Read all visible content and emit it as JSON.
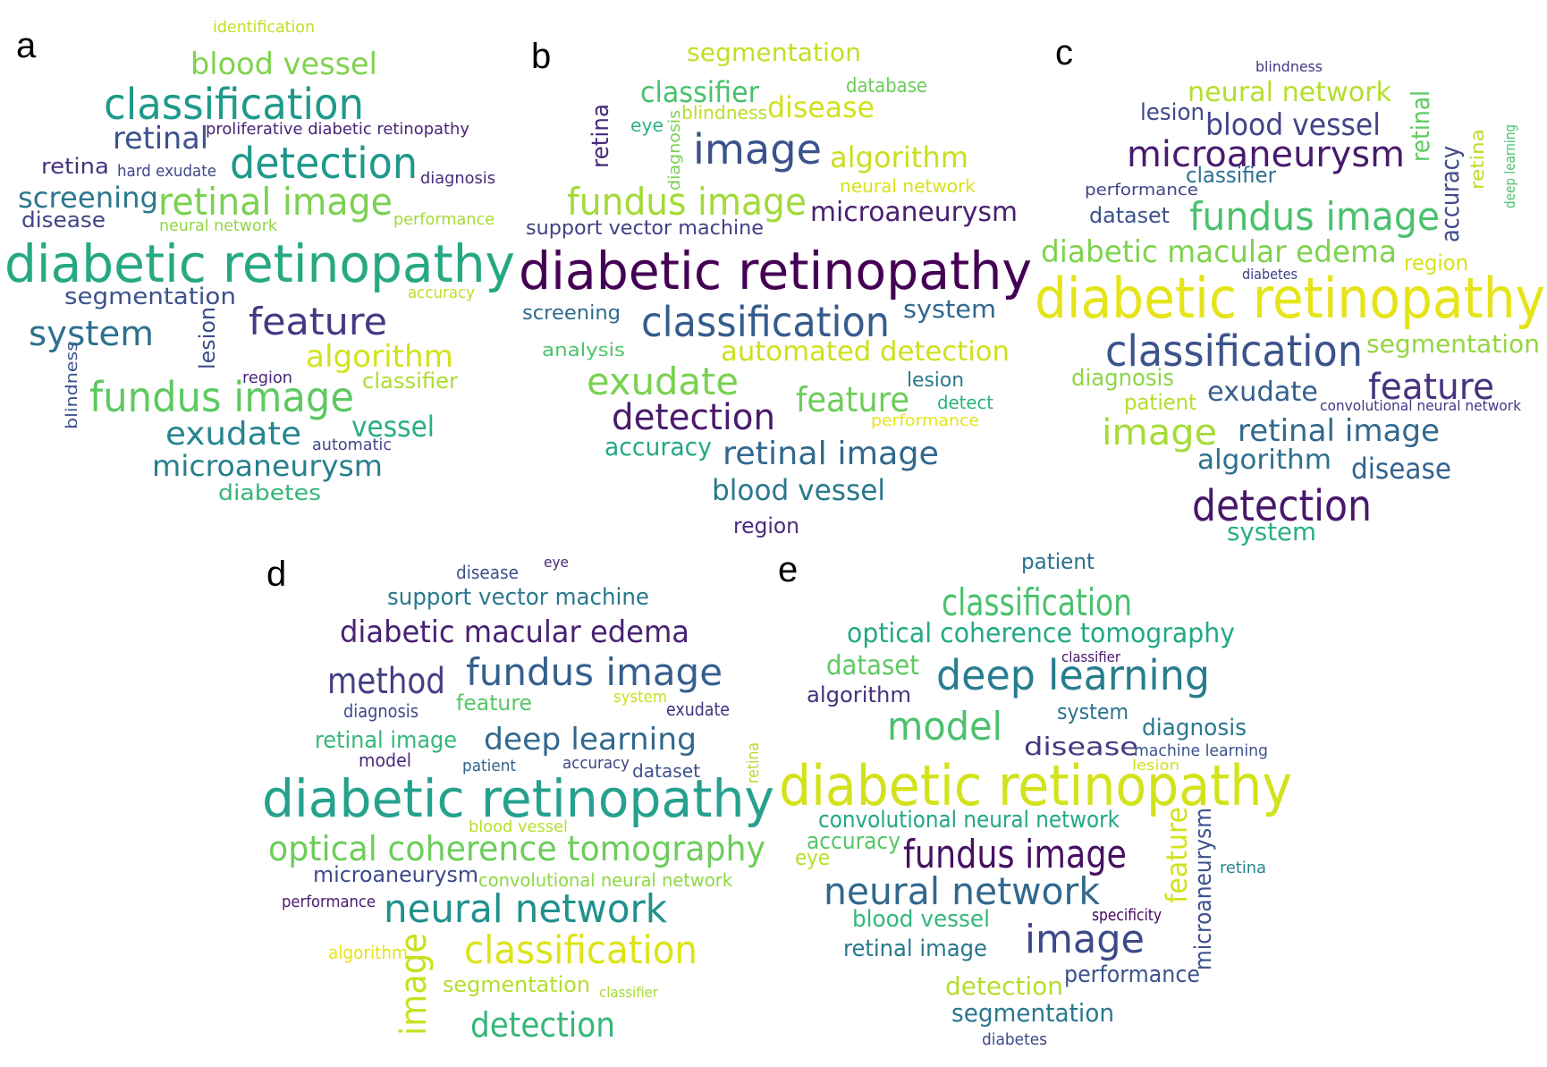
{
  "panels": [
    {
      "letter": "a",
      "words": [
        {
          "text": "identification",
          "color": "#c2df23"
        },
        {
          "text": "blood vessel",
          "color": "#7fd34e"
        },
        {
          "text": "classification",
          "color": "#1f9a8a"
        },
        {
          "text": "retinal",
          "color": "#3b528b"
        },
        {
          "text": "proliferative diabetic retinopathy",
          "color": "#482576"
        },
        {
          "text": "retina",
          "color": "#46337e"
        },
        {
          "text": "hard exudate",
          "color": "#3e4989"
        },
        {
          "text": "detection",
          "color": "#1f988b"
        },
        {
          "text": "diagnosis",
          "color": "#472c7a"
        },
        {
          "text": "screening",
          "color": "#2a788e"
        },
        {
          "text": "retinal image",
          "color": "#7ad151"
        },
        {
          "text": "disease",
          "color": "#414487"
        },
        {
          "text": "neural network",
          "color": "#90d743"
        },
        {
          "text": "performance",
          "color": "#a5db36"
        },
        {
          "text": "diabetic retinopathy",
          "color": "#26a883"
        },
        {
          "text": "segmentation",
          "color": "#3b528b"
        },
        {
          "text": "accuracy",
          "color": "#bddf26"
        },
        {
          "text": "system",
          "color": "#2c718e"
        },
        {
          "text": "feature",
          "color": "#443983"
        },
        {
          "text": "lesion",
          "color": "#3e4c8a"
        },
        {
          "text": "algorithm",
          "color": "#d2e21b"
        },
        {
          "text": "region",
          "color": "#482475"
        },
        {
          "text": "classifier",
          "color": "#addc30"
        },
        {
          "text": "blindness",
          "color": "#3b528b"
        },
        {
          "text": "fundus image",
          "color": "#5ec962"
        },
        {
          "text": "exudate",
          "color": "#25858e"
        },
        {
          "text": "automatic",
          "color": "#3f4788"
        },
        {
          "text": "vessel",
          "color": "#28ae80"
        },
        {
          "text": "microaneurysm",
          "color": "#277f8e"
        },
        {
          "text": "diabetes",
          "color": "#35b779"
        }
      ]
    },
    {
      "letter": "b",
      "words": [
        {
          "text": "segmentation",
          "color": "#c2df23"
        },
        {
          "text": "database",
          "color": "#6ccd5a"
        },
        {
          "text": "classifier",
          "color": "#4ac16d"
        },
        {
          "text": "blindness",
          "color": "#b8de29"
        },
        {
          "text": "disease",
          "color": "#d0e11c"
        },
        {
          "text": "retina",
          "color": "#482979"
        },
        {
          "text": "eye",
          "color": "#2db27d"
        },
        {
          "text": "diagnosis",
          "color": "#7ad151"
        },
        {
          "text": "image",
          "color": "#3b528b"
        },
        {
          "text": "algorithm",
          "color": "#c8e020"
        },
        {
          "text": "neural network",
          "color": "#d8e219"
        },
        {
          "text": "fundus image",
          "color": "#a2da37"
        },
        {
          "text": "microaneurysm",
          "color": "#481f70"
        },
        {
          "text": "support vector machine",
          "color": "#423f85"
        },
        {
          "text": "diabetic retinopathy",
          "color": "#440154"
        },
        {
          "text": "screening",
          "color": "#306a8e"
        },
        {
          "text": "classification",
          "color": "#365c8d"
        },
        {
          "text": "system",
          "color": "#31688e"
        },
        {
          "text": "analysis",
          "color": "#4ec36b"
        },
        {
          "text": "automated detection",
          "color": "#cde11d"
        },
        {
          "text": "exudate",
          "color": "#7ad151"
        },
        {
          "text": "lesion",
          "color": "#2a788e"
        },
        {
          "text": "feature",
          "color": "#6ccd5a"
        },
        {
          "text": "detect",
          "color": "#2db27d"
        },
        {
          "text": "detection",
          "color": "#481a6c"
        },
        {
          "text": "performance",
          "color": "#e5e419"
        },
        {
          "text": "accuracy",
          "color": "#22a884"
        },
        {
          "text": "retinal image",
          "color": "#31688e"
        },
        {
          "text": "blood vessel",
          "color": "#2a788e"
        },
        {
          "text": "region",
          "color": "#472d7b"
        }
      ]
    },
    {
      "letter": "c",
      "words": [
        {
          "text": "blindness",
          "color": "#443983"
        },
        {
          "text": "neural network",
          "color": "#b5de2b"
        },
        {
          "text": "lesion",
          "color": "#3e4989"
        },
        {
          "text": "blood vessel",
          "color": "#414487"
        },
        {
          "text": "microaneurysm",
          "color": "#481b6d"
        },
        {
          "text": "retinal",
          "color": "#5ec962"
        },
        {
          "text": "accuracy",
          "color": "#3e4989"
        },
        {
          "text": "retina",
          "color": "#b8de29"
        },
        {
          "text": "deep learning",
          "color": "#4ac16d"
        },
        {
          "text": "performance",
          "color": "#404588"
        },
        {
          "text": "classifier",
          "color": "#2c718e"
        },
        {
          "text": "dataset",
          "color": "#3b528b"
        },
        {
          "text": "fundus image",
          "color": "#4ac16d"
        },
        {
          "text": "diabetic macular edema",
          "color": "#7fd34e"
        },
        {
          "text": "region",
          "color": "#d8e219"
        },
        {
          "text": "diabetes",
          "color": "#423f85"
        },
        {
          "text": "diabetic retinopathy",
          "color": "#e5e419"
        },
        {
          "text": "classification",
          "color": "#3b528b"
        },
        {
          "text": "segmentation",
          "color": "#93d741"
        },
        {
          "text": "diagnosis",
          "color": "#8ed645"
        },
        {
          "text": "patient",
          "color": "#b5de2b"
        },
        {
          "text": "exudate",
          "color": "#355f8d"
        },
        {
          "text": "feature",
          "color": "#46327e"
        },
        {
          "text": "convolutional neural network",
          "color": "#453781"
        },
        {
          "text": "image",
          "color": "#a5db36"
        },
        {
          "text": "retinal image",
          "color": "#31688e"
        },
        {
          "text": "algorithm",
          "color": "#2d708e"
        },
        {
          "text": "disease",
          "color": "#33638d"
        },
        {
          "text": "detection",
          "color": "#481769"
        },
        {
          "text": "system",
          "color": "#29af7f"
        }
      ]
    },
    {
      "letter": "d",
      "words": [
        {
          "text": "disease",
          "color": "#3b528b"
        },
        {
          "text": "eye",
          "color": "#482979"
        },
        {
          "text": "support vector machine",
          "color": "#2a788e"
        },
        {
          "text": "diabetic macular edema",
          "color": "#482173"
        },
        {
          "text": "method",
          "color": "#433e85"
        },
        {
          "text": "fundus image",
          "color": "#355f8d"
        },
        {
          "text": "diagnosis",
          "color": "#3e4989"
        },
        {
          "text": "feature",
          "color": "#56c667"
        },
        {
          "text": "system",
          "color": "#cae11f"
        },
        {
          "text": "exudate",
          "color": "#46327e"
        },
        {
          "text": "retinal image",
          "color": "#35b779"
        },
        {
          "text": "deep learning",
          "color": "#31688e"
        },
        {
          "text": "model",
          "color": "#482878"
        },
        {
          "text": "patient",
          "color": "#33638d"
        },
        {
          "text": "accuracy",
          "color": "#414487"
        },
        {
          "text": "dataset",
          "color": "#3b528b"
        },
        {
          "text": "retina",
          "color": "#b5de2b"
        },
        {
          "text": "diabetic retinopathy",
          "color": "#25a18e"
        },
        {
          "text": "blood vessel",
          "color": "#b8de29"
        },
        {
          "text": "optical coherence tomography",
          "color": "#6ccd5a"
        },
        {
          "text": "microaneurysm",
          "color": "#3e4989"
        },
        {
          "text": "convolutional neural network",
          "color": "#8fd744"
        },
        {
          "text": "performance",
          "color": "#481b6d"
        },
        {
          "text": "neural network",
          "color": "#21918c"
        },
        {
          "text": "algorithm",
          "color": "#e5e419"
        },
        {
          "text": "image",
          "color": "#c8e020"
        },
        {
          "text": "classification",
          "color": "#dde318"
        },
        {
          "text": "segmentation",
          "color": "#b5de2b"
        },
        {
          "text": "classifier",
          "color": "#a5db36"
        },
        {
          "text": "detection",
          "color": "#35b779"
        }
      ]
    },
    {
      "letter": "e",
      "words": [
        {
          "text": "patient",
          "color": "#2c718e"
        },
        {
          "text": "classification",
          "color": "#4ac16d"
        },
        {
          "text": "optical coherence tomography",
          "color": "#22a884"
        },
        {
          "text": "classifier",
          "color": "#481769"
        },
        {
          "text": "dataset",
          "color": "#5ec962"
        },
        {
          "text": "deep learning",
          "color": "#287d8e"
        },
        {
          "text": "algorithm",
          "color": "#46327e"
        },
        {
          "text": "system",
          "color": "#2c728e"
        },
        {
          "text": "model",
          "color": "#4ac16d"
        },
        {
          "text": "diagnosis",
          "color": "#2a788e"
        },
        {
          "text": "disease",
          "color": "#443983"
        },
        {
          "text": "machine learning",
          "color": "#3b528b"
        },
        {
          "text": "lesion",
          "color": "#d0e11c"
        },
        {
          "text": "diabetic retinopathy",
          "color": "#d2e21b"
        },
        {
          "text": "convolutional neural network",
          "color": "#22a884"
        },
        {
          "text": "accuracy",
          "color": "#56c667"
        },
        {
          "text": "eye",
          "color": "#b8de29"
        },
        {
          "text": "fundus image",
          "color": "#471063"
        },
        {
          "text": "feature",
          "color": "#d2e21b"
        },
        {
          "text": "microaneurysm",
          "color": "#3b528b"
        },
        {
          "text": "retina",
          "color": "#25858e"
        },
        {
          "text": "neural network",
          "color": "#31688e"
        },
        {
          "text": "specificity",
          "color": "#46085c"
        },
        {
          "text": "blood vessel",
          "color": "#35b779"
        },
        {
          "text": "retinal image",
          "color": "#2a788e"
        },
        {
          "text": "image",
          "color": "#3e4989"
        },
        {
          "text": "detection",
          "color": "#b5de2b"
        },
        {
          "text": "performance",
          "color": "#3b528b"
        },
        {
          "text": "segmentation",
          "color": "#2a788e"
        },
        {
          "text": "diabetes",
          "color": "#3e4989"
        }
      ]
    }
  ]
}
